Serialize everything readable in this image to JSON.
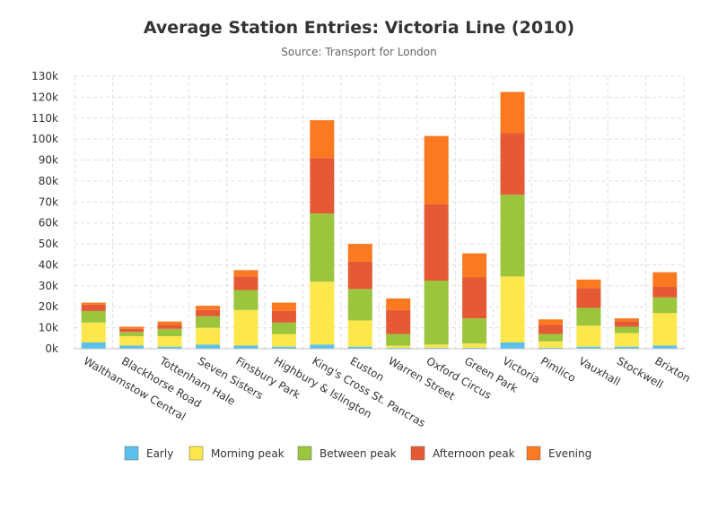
{
  "header": {
    "title": "Average Station Entries: Victoria Line (2010)",
    "subtitle": "Source: Transport for London"
  },
  "chart_data": {
    "type": "bar",
    "stacked": true,
    "title": "Average Station Entries: Victoria Line (2010)",
    "subtitle": "Source: Transport for London",
    "xlabel": "",
    "ylabel": "",
    "ylim": [
      0,
      130000
    ],
    "y_ticks": [
      0,
      10000,
      20000,
      30000,
      40000,
      50000,
      60000,
      70000,
      80000,
      90000,
      100000,
      110000,
      120000,
      130000
    ],
    "y_tick_labels": [
      "0k",
      "10k",
      "20k",
      "30k",
      "40k",
      "50k",
      "60k",
      "70k",
      "80k",
      "90k",
      "100k",
      "110k",
      "120k",
      "130k"
    ],
    "grid": true,
    "legend_position": "bottom",
    "categories": [
      "Walthamstow Central",
      "Blackhorse Road",
      "Tottenham Hale",
      "Seven Sisters",
      "Finsbury Park",
      "Highbury & Islington",
      "King's Cross St. Pancras",
      "Euston",
      "Warren Street",
      "Oxford Circus",
      "Green Park",
      "Victoria",
      "Pimlico",
      "Vauxhall",
      "Stockwell",
      "Brixton"
    ],
    "series": [
      {
        "name": "Early",
        "color": "#5bc0eb",
        "values": [
          3000,
          1500,
          1000,
          2000,
          1500,
          1000,
          2000,
          1000,
          500,
          500,
          500,
          3000,
          500,
          1000,
          1000,
          1500
        ]
      },
      {
        "name": "Morning peak",
        "color": "#fde74c",
        "values": [
          9500,
          4500,
          5000,
          8000,
          17000,
          6000,
          30000,
          12500,
          1000,
          1500,
          2000,
          31500,
          3000,
          10000,
          6500,
          15500
        ]
      },
      {
        "name": "Between peak",
        "color": "#9bc53d",
        "values": [
          5500,
          2000,
          3500,
          5500,
          9500,
          5500,
          32500,
          15000,
          5500,
          30500,
          12000,
          39000,
          3500,
          8500,
          3000,
          7500
        ]
      },
      {
        "name": "Afternoon peak",
        "color": "#e55934",
        "values": [
          3000,
          1500,
          2000,
          3000,
          6500,
          5500,
          26500,
          13000,
          11500,
          36500,
          19500,
          29500,
          4500,
          9500,
          2500,
          5000
        ]
      },
      {
        "name": "Evening",
        "color": "#fa7921",
        "values": [
          1000,
          1000,
          1500,
          2000,
          3000,
          4000,
          18000,
          8500,
          5500,
          32500,
          11500,
          19500,
          2500,
          4000,
          1500,
          7000
        ]
      }
    ]
  }
}
